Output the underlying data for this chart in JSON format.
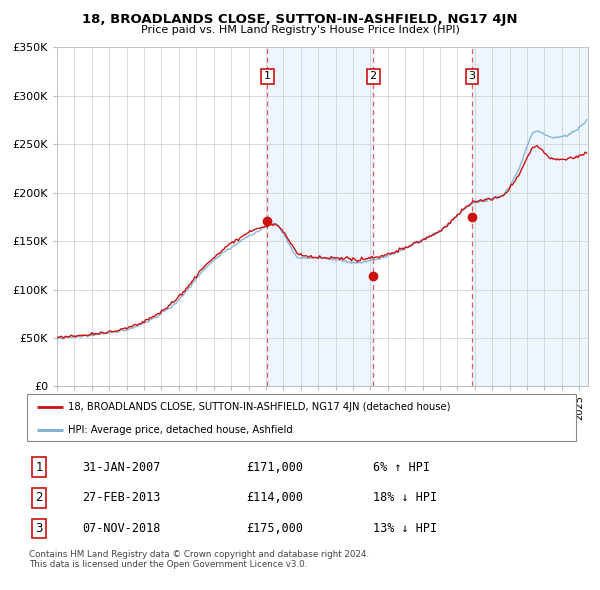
{
  "title": "18, BROADLANDS CLOSE, SUTTON-IN-ASHFIELD, NG17 4JN",
  "subtitle": "Price paid vs. HM Land Registry's House Price Index (HPI)",
  "ylim": [
    0,
    350000
  ],
  "yticks": [
    0,
    50000,
    100000,
    150000,
    200000,
    250000,
    300000,
    350000
  ],
  "ytick_labels": [
    "£0",
    "£50K",
    "£100K",
    "£150K",
    "£200K",
    "£250K",
    "£300K",
    "£350K"
  ],
  "hpi_color": "#7bafd4",
  "price_color": "#cc1111",
  "grid_color": "#cccccc",
  "bg_shade_color": "#ddeeff",
  "transactions": [
    {
      "date_num": 2007.08,
      "price": 171000,
      "label": "1"
    },
    {
      "date_num": 2013.16,
      "price": 114000,
      "label": "2"
    },
    {
      "date_num": 2018.84,
      "price": 175000,
      "label": "3"
    }
  ],
  "transaction_dates_str": [
    "31-JAN-2007",
    "27-FEB-2013",
    "07-NOV-2018"
  ],
  "transaction_prices_str": [
    "£171,000",
    "£114,000",
    "£175,000"
  ],
  "transaction_hpi_str": [
    "6% ↑ HPI",
    "18% ↓ HPI",
    "13% ↓ HPI"
  ],
  "legend_red_label": "18, BROADLANDS CLOSE, SUTTON-IN-ASHFIELD, NG17 4JN (detached house)",
  "legend_blue_label": "HPI: Average price, detached house, Ashfield",
  "footer": "Contains HM Land Registry data © Crown copyright and database right 2024.\nThis data is licensed under the Open Government Licence v3.0.",
  "vline_color": "#dd4444",
  "xlim_left": 1995.0,
  "xlim_right": 2025.5
}
